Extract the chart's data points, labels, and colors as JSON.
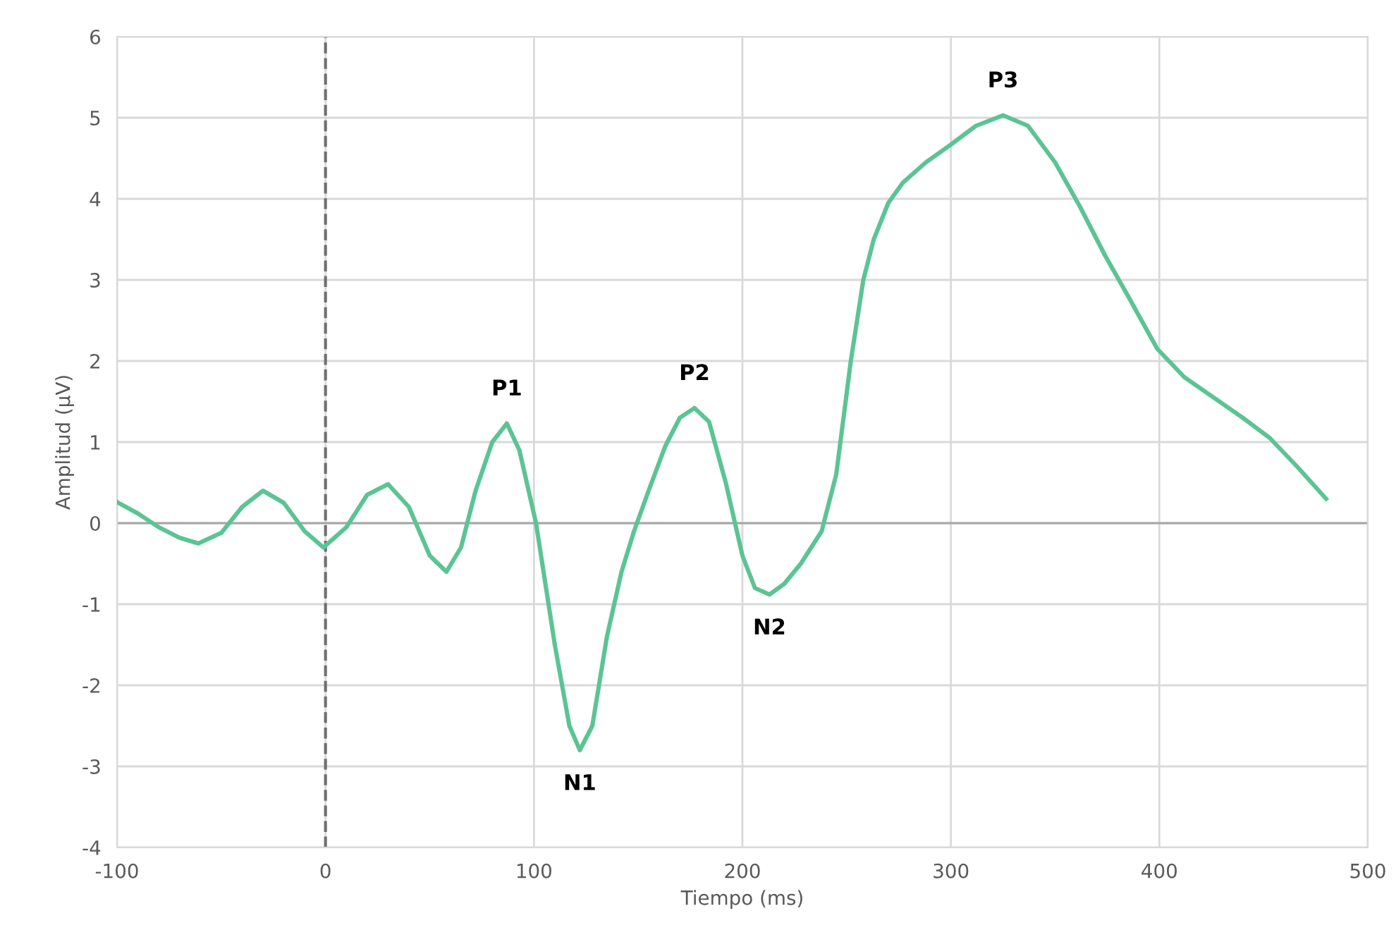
{
  "chart_data": {
    "type": "line",
    "xlabel": "Tiempo (ms)",
    "ylabel": "Amplitud (µV)",
    "xlim": [
      -100,
      500
    ],
    "xticks": [
      -100,
      0,
      100,
      200,
      300,
      400,
      500
    ],
    "ylim": [
      -4,
      6
    ],
    "yticks": [
      -4,
      -3,
      -2,
      -1,
      0,
      1,
      2,
      3,
      4,
      5,
      6
    ],
    "grid": true,
    "legend": false,
    "marker": "none",
    "line_style": "solid",
    "series": [
      {
        "color": "#5cc494",
        "x": [
          -100,
          -90,
          -80,
          -70,
          -61,
          -50,
          -40,
          -30,
          -20,
          -10,
          -1,
          10,
          20,
          30,
          40,
          50,
          58,
          65,
          72,
          80,
          87,
          93,
          101,
          110,
          117,
          122,
          128,
          135,
          142,
          148,
          155,
          163,
          170,
          177,
          184,
          192,
          200,
          206,
          213,
          220,
          228,
          238,
          245,
          252,
          258,
          263,
          270,
          277,
          288,
          299,
          312,
          325,
          337,
          350,
          362,
          374,
          385,
          399,
          412,
          426,
          440,
          453,
          466,
          480
        ],
        "values": [
          0.26,
          0.12,
          -0.05,
          -0.18,
          -0.25,
          -0.12,
          0.2,
          0.4,
          0.25,
          -0.1,
          -0.3,
          -0.05,
          0.35,
          0.48,
          0.2,
          -0.4,
          -0.6,
          -0.3,
          0.4,
          1.0,
          1.23,
          0.9,
          0.0,
          -1.5,
          -2.5,
          -2.8,
          -2.5,
          -1.4,
          -0.6,
          -0.1,
          0.4,
          0.95,
          1.3,
          1.42,
          1.25,
          0.5,
          -0.4,
          -0.8,
          -0.88,
          -0.75,
          -0.5,
          -0.1,
          0.6,
          2.0,
          3.0,
          3.5,
          3.95,
          4.2,
          4.45,
          4.65,
          4.9,
          5.03,
          4.9,
          4.45,
          3.9,
          3.3,
          2.8,
          2.15,
          1.8,
          1.55,
          1.3,
          1.05,
          0.7,
          0.3
        ]
      }
    ],
    "ref_lines": [
      {
        "axis": "x",
        "value": 0,
        "label": null,
        "color": "#707070",
        "line_style": "dashed"
      }
    ],
    "annotations": [
      {
        "text": "P1",
        "x": 87,
        "y": 1.23
      },
      {
        "text": "N1",
        "x": 122,
        "y": -2.8
      },
      {
        "text": "P2",
        "x": 177,
        "y": 1.42
      },
      {
        "text": "N2",
        "x": 213,
        "y": -0.88
      },
      {
        "text": "P3",
        "x": 325,
        "y": 5.03
      }
    ]
  }
}
